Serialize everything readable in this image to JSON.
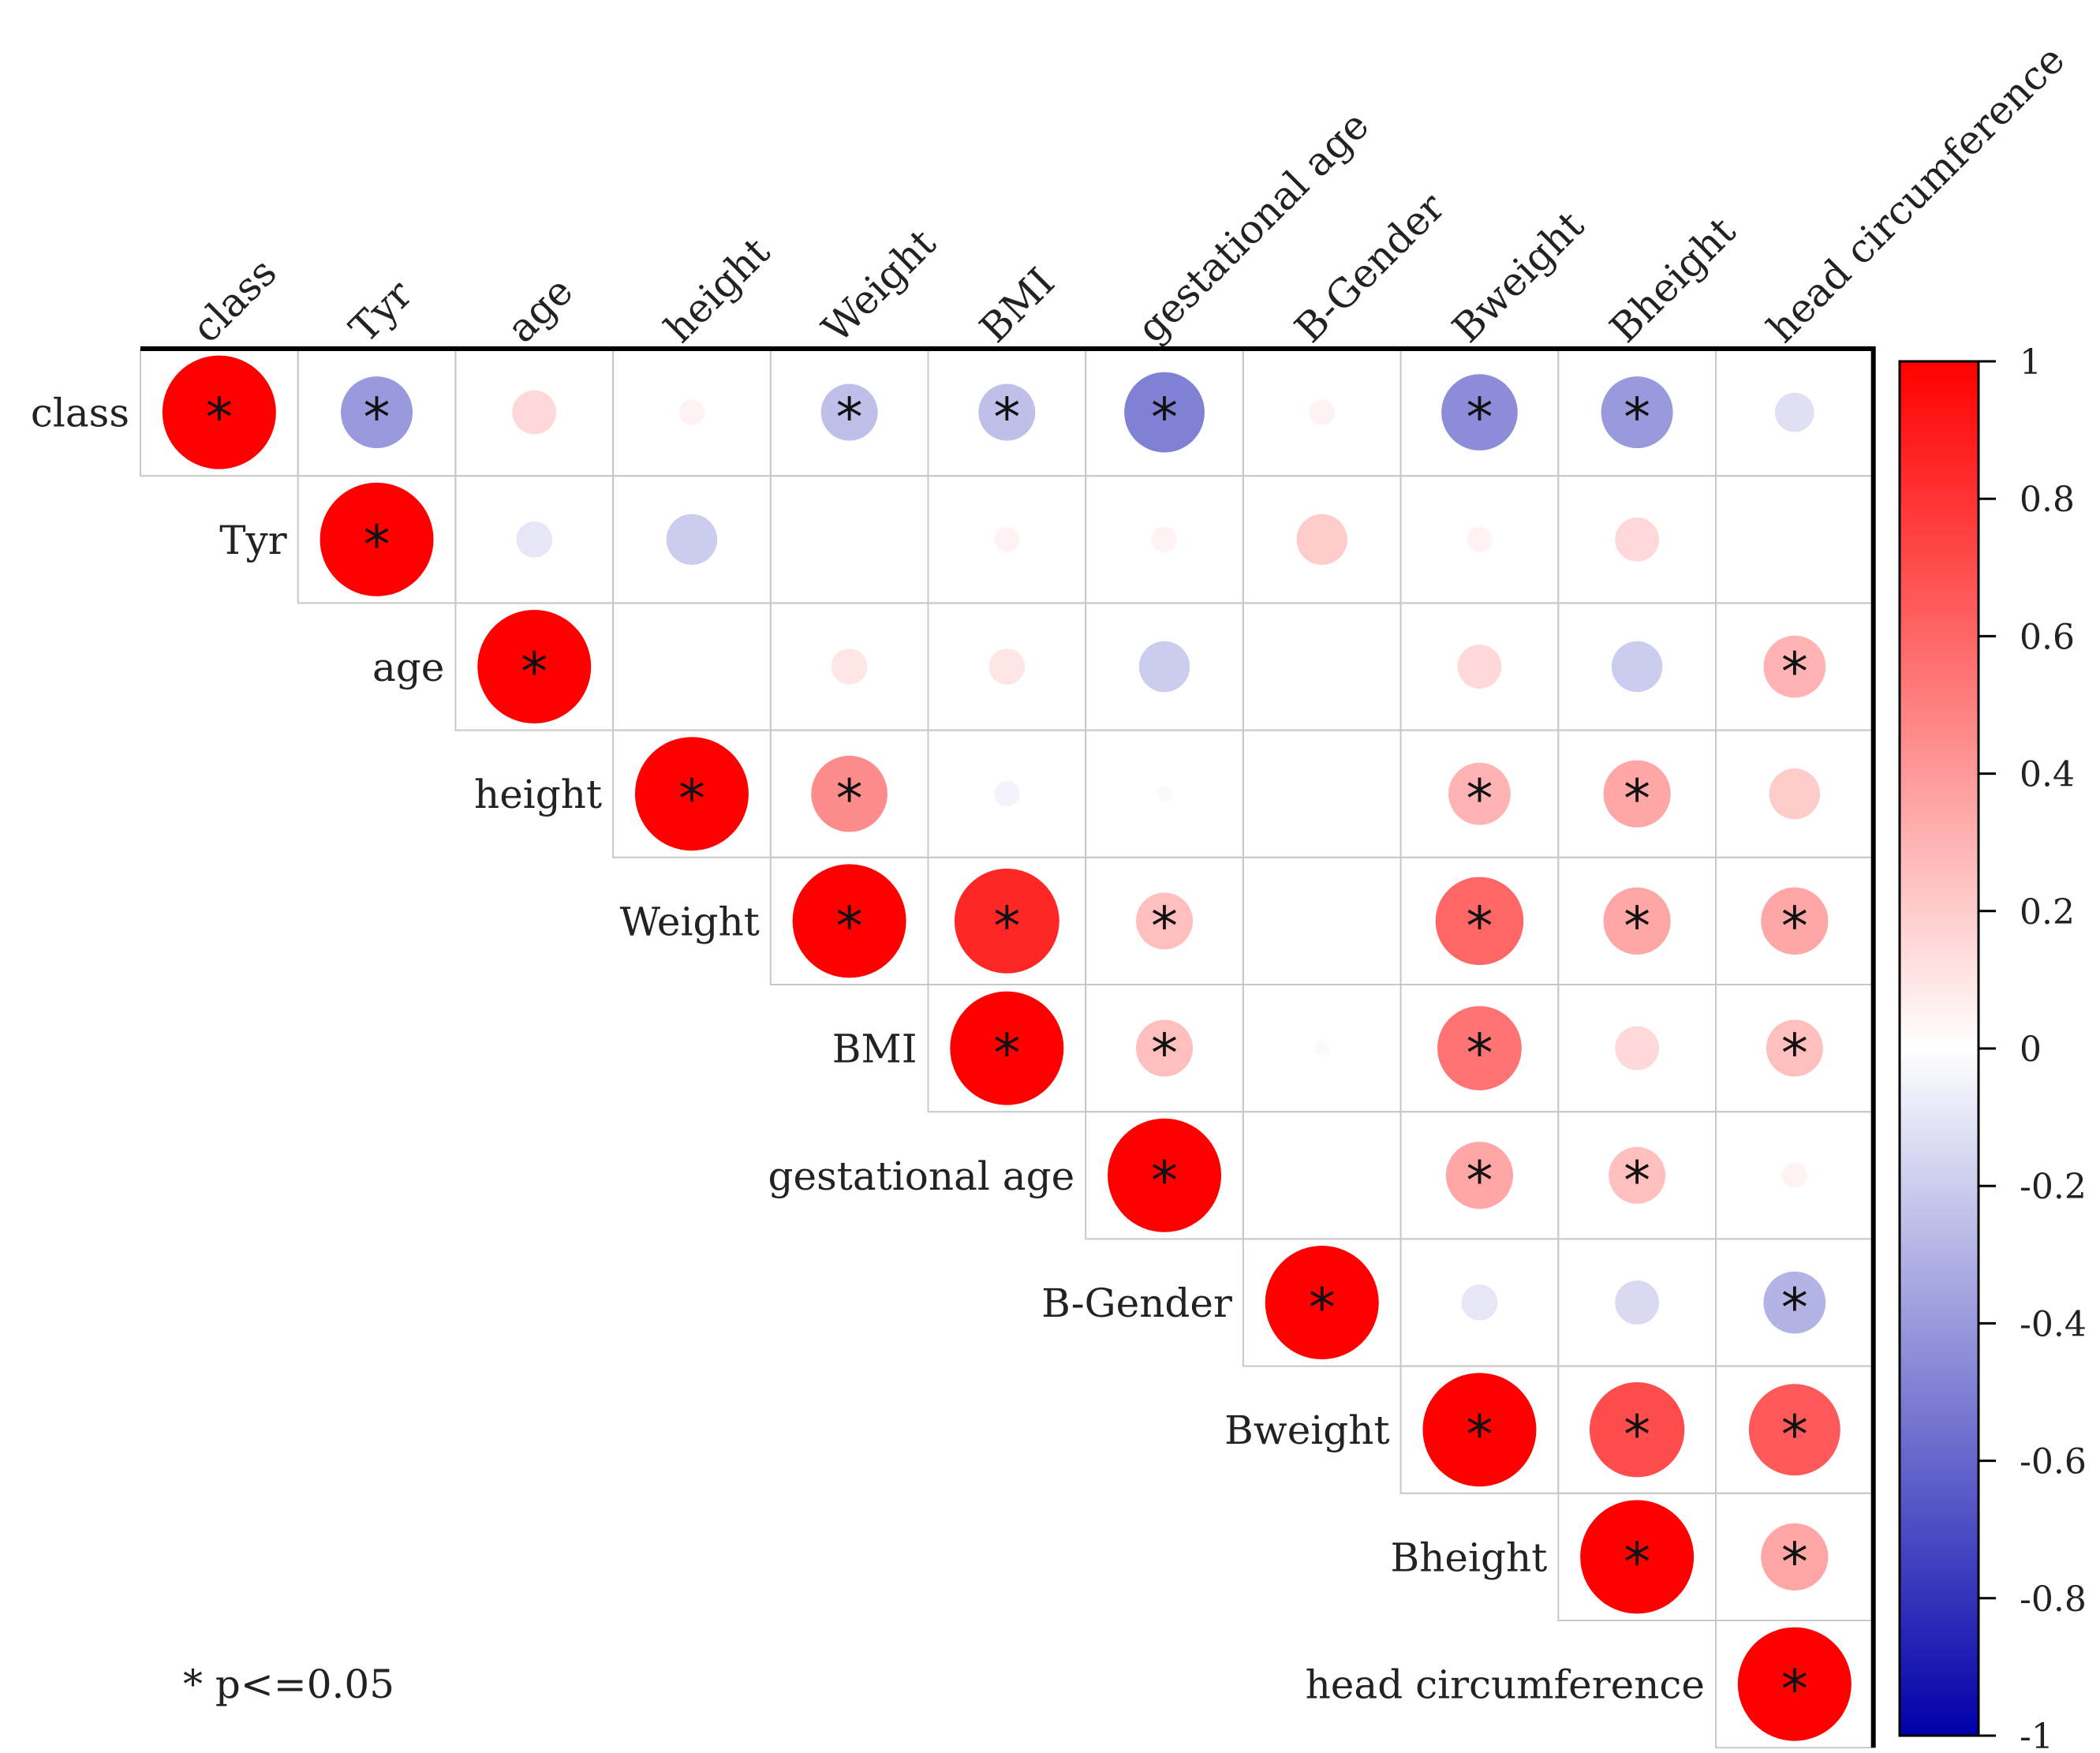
{
  "chart_data": {
    "type": "correlation-matrix",
    "variables": [
      "class",
      "Tyr",
      "age",
      "height",
      "Weight",
      "BMI",
      "gestational age",
      "B-Gender",
      "Bweight",
      "Bheight",
      "head circumference"
    ],
    "layout": "upper-triangle",
    "matrix": [
      [
        1.0,
        -0.4,
        0.15,
        0.05,
        -0.25,
        -0.25,
        -0.5,
        0.05,
        -0.45,
        -0.4,
        -0.12
      ],
      [
        null,
        1.0,
        -0.1,
        -0.2,
        0.0,
        0.05,
        0.05,
        0.2,
        0.05,
        0.15,
        0.0
      ],
      [
        null,
        null,
        1.0,
        0.0,
        0.1,
        0.1,
        -0.2,
        0.0,
        0.15,
        -0.2,
        0.3
      ],
      [
        null,
        null,
        null,
        1.0,
        0.45,
        -0.05,
        0.02,
        0.0,
        0.3,
        0.35,
        0.2
      ],
      [
        null,
        null,
        null,
        null,
        1.0,
        0.85,
        0.25,
        0.0,
        0.6,
        0.35,
        0.35
      ],
      [
        null,
        null,
        null,
        null,
        null,
        1.0,
        0.25,
        0.02,
        0.55,
        0.15,
        0.25
      ],
      [
        null,
        null,
        null,
        null,
        null,
        null,
        1.0,
        0.0,
        0.35,
        0.25,
        0.05
      ],
      [
        null,
        null,
        null,
        null,
        null,
        null,
        null,
        1.0,
        -0.1,
        -0.15,
        -0.3
      ],
      [
        null,
        null,
        null,
        null,
        null,
        null,
        null,
        null,
        1.0,
        0.7,
        0.65
      ],
      [
        null,
        null,
        null,
        null,
        null,
        null,
        null,
        null,
        null,
        1.0,
        0.35
      ],
      [
        null,
        null,
        null,
        null,
        null,
        null,
        null,
        null,
        null,
        null,
        1.0
      ]
    ],
    "significant": [
      [
        true,
        true,
        false,
        false,
        true,
        true,
        true,
        false,
        true,
        true,
        false
      ],
      [
        null,
        true,
        false,
        false,
        false,
        false,
        false,
        false,
        false,
        false,
        false
      ],
      [
        null,
        null,
        true,
        false,
        false,
        false,
        false,
        false,
        false,
        false,
        true
      ],
      [
        null,
        null,
        null,
        true,
        true,
        false,
        false,
        false,
        true,
        true,
        false
      ],
      [
        null,
        null,
        null,
        null,
        true,
        true,
        true,
        false,
        true,
        true,
        true
      ],
      [
        null,
        null,
        null,
        null,
        null,
        true,
        true,
        false,
        true,
        false,
        true
      ],
      [
        null,
        null,
        null,
        null,
        null,
        null,
        true,
        false,
        true,
        true,
        false
      ],
      [
        null,
        null,
        null,
        null,
        null,
        null,
        null,
        true,
        false,
        false,
        true
      ],
      [
        null,
        null,
        null,
        null,
        null,
        null,
        null,
        null,
        true,
        true,
        true
      ],
      [
        null,
        null,
        null,
        null,
        null,
        null,
        null,
        null,
        null,
        true,
        true
      ],
      [
        null,
        null,
        null,
        null,
        null,
        null,
        null,
        null,
        null,
        null,
        true
      ]
    ],
    "significance_marker": "*",
    "colorbar": {
      "range": [
        -1,
        1
      ],
      "ticks": [
        1,
        0.8,
        0.6,
        0.4,
        0.2,
        0,
        -0.2,
        -0.4,
        -0.6,
        -0.8,
        -1
      ],
      "tick_labels": [
        "1",
        "0.8",
        "0.6",
        "0.4",
        "0.2",
        "0",
        "-0.2",
        "-0.4",
        "-0.6",
        "-0.8",
        "-1"
      ],
      "color_positive": "#ff0000",
      "color_zero": "#ffffff",
      "color_negative": "#0000aa"
    },
    "legend_note": "* p<=0.05"
  }
}
